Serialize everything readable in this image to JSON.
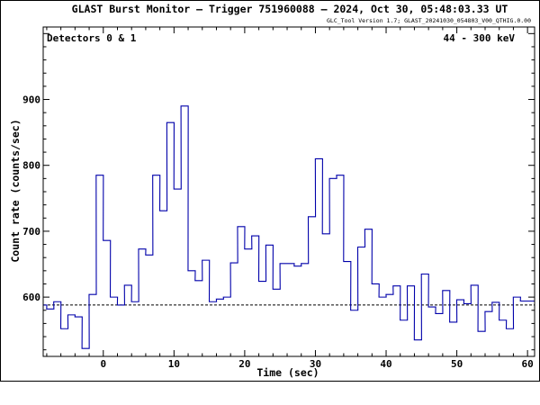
{
  "chart_data": {
    "type": "line",
    "step": true,
    "title": "GLAST Burst Monitor  –  Trigger 751960088  –  2024, Oct 30, 05:48:03.33 UT",
    "version_note": "GLC_Tool Version 1.7; GLAST_20241030_054803_V00_QTHIG.0.00",
    "detector_label": "Detectors 0 & 1",
    "energy_label": "44 - 300 keV",
    "xlabel": "Time (sec)",
    "ylabel": "Count rate (counts/sec)",
    "xlim": [
      -8.5,
      61
    ],
    "ylim": [
      510,
      1010
    ],
    "x_ticks": [
      0,
      10,
      20,
      30,
      40,
      50,
      60
    ],
    "y_ticks": [
      600,
      700,
      800,
      900
    ],
    "y_tick_labels": [
      "600",
      "700",
      "800",
      "900"
    ],
    "baseline": 588,
    "bin_width": 1.024,
    "line_color": "#0000aa",
    "baseline_style": "dashed",
    "series": [
      {
        "x": [
          -8.5,
          -7.5,
          -6.5,
          -5.5,
          -4.5,
          -3.5,
          -2.5,
          -1.5,
          -0.5,
          0.5,
          1.5,
          2.5,
          3.5,
          4.5,
          5.5,
          6.5,
          7.5,
          8.5,
          9.5,
          10.5,
          11.5,
          12.5,
          13.5,
          14.5,
          15.5,
          16.5,
          17.5,
          18.5,
          19.5,
          20.5,
          21.5,
          22.5,
          23.5,
          24.5,
          25.5,
          26.5,
          27.5,
          28.5,
          29.5,
          30.5,
          31.5,
          32.5,
          33.5,
          34.5,
          35.5,
          36.5,
          37.5,
          38.5,
          39.5,
          40.5,
          41.5,
          42.5,
          43.5,
          44.5,
          45.5,
          46.5,
          47.5,
          48.5,
          49.5,
          50.5,
          51.5,
          52.5,
          53.5,
          54.5,
          55.5,
          56.5,
          57.5,
          58.5,
          59.5,
          60.5
        ],
        "values": [
          588,
          582,
          593,
          552,
          573,
          570,
          522,
          604,
          785,
          686,
          600,
          588,
          618,
          593,
          673,
          664,
          785,
          731,
          865,
          764,
          890,
          640,
          625,
          656,
          593,
          597,
          600,
          652,
          707,
          673,
          693,
          624,
          679,
          612,
          651,
          651,
          647,
          651,
          722,
          810,
          696,
          780,
          785,
          654,
          580,
          676,
          703,
          620,
          600,
          604,
          617,
          565,
          617,
          535,
          635,
          585,
          575,
          610,
          562,
          596,
          590,
          618,
          548,
          578,
          592,
          565,
          552,
          600,
          594,
          594
        ]
      }
    ]
  }
}
